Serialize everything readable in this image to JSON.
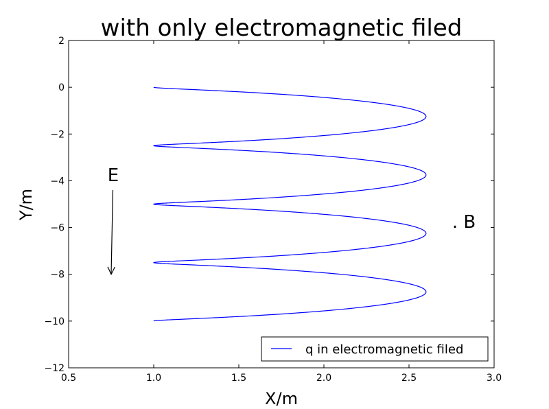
{
  "chart_data": {
    "type": "line",
    "title": "with only electromagnetic filed",
    "xlabel": "X/m",
    "ylabel": "Y/m",
    "xlim": [
      0.5,
      3.0
    ],
    "ylim": [
      -12,
      2
    ],
    "xticks": [
      0.5,
      1.0,
      1.5,
      2.0,
      2.5,
      3.0
    ],
    "xtick_labels": [
      "0.5",
      "1.0",
      "1.5",
      "2.0",
      "2.5",
      "3.0"
    ],
    "yticks": [
      2,
      0,
      -2,
      -4,
      -6,
      -8,
      -10,
      -12
    ],
    "ytick_labels": [
      "2",
      "0",
      "−2",
      "−4",
      "−6",
      "−8",
      "−10",
      "−12"
    ],
    "grid": false,
    "legend_position": "lower right",
    "series": [
      {
        "name": "q in electromagnetic filed",
        "color": "#0000ff",
        "description_params": {
          "x_center": 1.8,
          "radius": 0.8,
          "y_drift_per_turn": -2.5,
          "y_amplitude": 0.3,
          "turns": 4
        }
      }
    ],
    "annotations": {
      "e_label": "E",
      "b_label": ". B",
      "e_arrow": {
        "from": [
          0.76,
          -4.4
        ],
        "to": [
          0.75,
          -8.0
        ]
      }
    }
  }
}
